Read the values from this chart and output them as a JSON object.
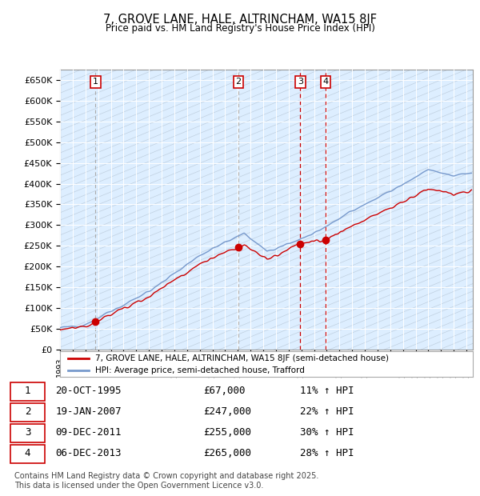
{
  "title": "7, GROVE LANE, HALE, ALTRINCHAM, WA15 8JF",
  "subtitle": "Price paid vs. HM Land Registry's House Price Index (HPI)",
  "ylabel_ticks": [
    "£0",
    "£50K",
    "£100K",
    "£150K",
    "£200K",
    "£250K",
    "£300K",
    "£350K",
    "£400K",
    "£450K",
    "£500K",
    "£550K",
    "£600K",
    "£650K"
  ],
  "ytick_values": [
    0,
    50000,
    100000,
    150000,
    200000,
    250000,
    300000,
    350000,
    400000,
    450000,
    500000,
    550000,
    600000,
    650000
  ],
  "xlim_start": 1993.0,
  "xlim_end": 2025.5,
  "ylim_min": 0,
  "ylim_max": 675000,
  "sale_dates": [
    1995.79,
    2007.05,
    2011.92,
    2013.92
  ],
  "sale_prices": [
    67000,
    247000,
    255000,
    265000
  ],
  "sale_labels": [
    "1",
    "2",
    "3",
    "4"
  ],
  "vline_gray": [
    1995.79,
    2007.05
  ],
  "vline_red": [
    2011.92,
    2013.92
  ],
  "legend_line1": "7, GROVE LANE, HALE, ALTRINCHAM, WA15 8JF (semi-detached house)",
  "legend_line2": "HPI: Average price, semi-detached house, Trafford",
  "table_data": [
    [
      "1",
      "20-OCT-1995",
      "£67,000",
      "11% ↑ HPI"
    ],
    [
      "2",
      "19-JAN-2007",
      "£247,000",
      "22% ↑ HPI"
    ],
    [
      "3",
      "09-DEC-2011",
      "£255,000",
      "30% ↑ HPI"
    ],
    [
      "4",
      "06-DEC-2013",
      "£265,000",
      "28% ↑ HPI"
    ]
  ],
  "footer": "Contains HM Land Registry data © Crown copyright and database right 2025.\nThis data is licensed under the Open Government Licence v3.0.",
  "line_color_red": "#cc0000",
  "line_color_blue": "#7799cc",
  "plot_bg_color": "#ddeeff",
  "hatch_line_color": "#c0d0e0"
}
